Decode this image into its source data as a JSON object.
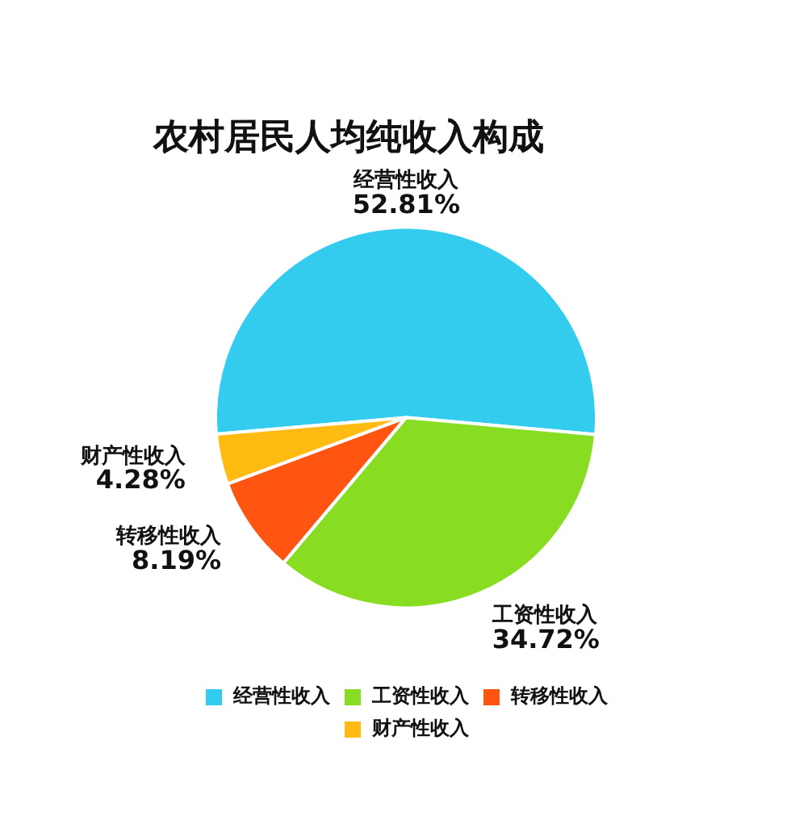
{
  "chart_data": {
    "type": "pie",
    "title": "农村居民人均纯收入构成",
    "categories": [
      "经营性收入",
      "工资性收入",
      "转移性收入",
      "财产性收入"
    ],
    "values": [
      52.81,
      34.72,
      8.19,
      4.28
    ],
    "value_labels": [
      "52.81%",
      "34.72%",
      "8.19%",
      "4.28%"
    ],
    "colors": [
      "#33ccee",
      "#88dd22",
      "#ff5511",
      "#ffbb11"
    ],
    "legend": "bottom"
  }
}
